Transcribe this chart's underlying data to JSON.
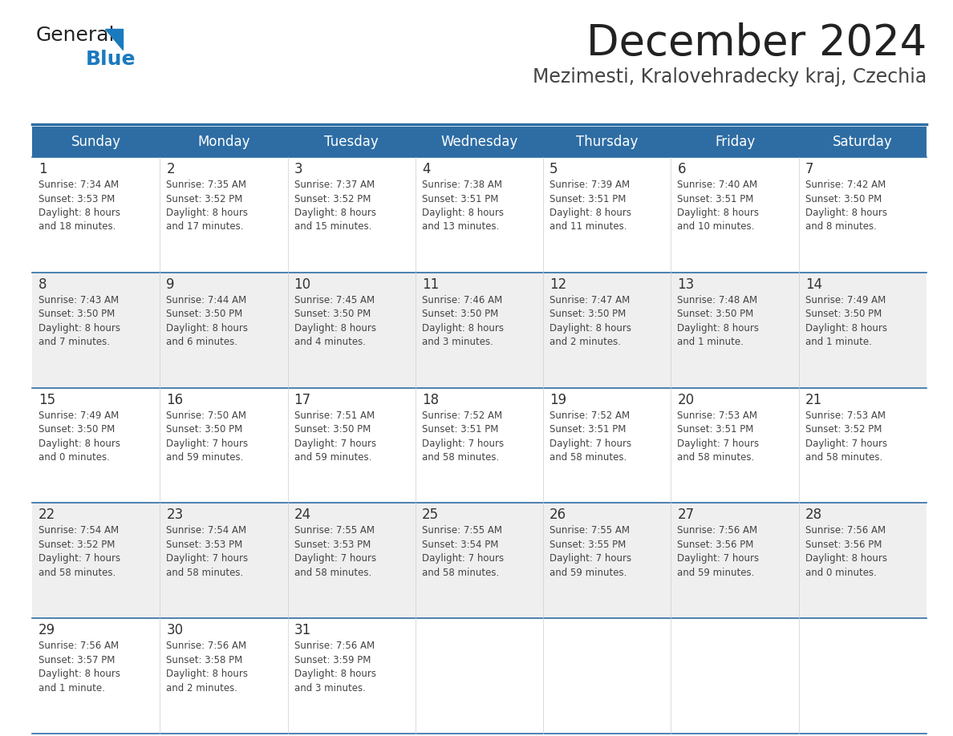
{
  "title": "December 2024",
  "subtitle": "Mezimesti, Kralovehradecky kraj, Czechia",
  "days_of_week": [
    "Sunday",
    "Monday",
    "Tuesday",
    "Wednesday",
    "Thursday",
    "Friday",
    "Saturday"
  ],
  "header_bg_color": "#2e6da4",
  "header_text_color": "#ffffff",
  "cell_bg_row0": "#ffffff",
  "cell_bg_row1": "#efefef",
  "cell_bg_row2": "#ffffff",
  "cell_bg_row3": "#efefef",
  "cell_bg_row4": "#ffffff",
  "cell_border_color": "#2e6da4",
  "day_number_color": "#333333",
  "cell_text_color": "#444444",
  "title_color": "#222222",
  "subtitle_color": "#444444",
  "logo_general_color": "#222222",
  "logo_blue_color": "#1a7abf",
  "calendar": [
    [
      {
        "day": 1,
        "sunrise": "7:34 AM",
        "sunset": "3:53 PM",
        "dl1": "Daylight: 8 hours",
        "dl2": "and 18 minutes."
      },
      {
        "day": 2,
        "sunrise": "7:35 AM",
        "sunset": "3:52 PM",
        "dl1": "Daylight: 8 hours",
        "dl2": "and 17 minutes."
      },
      {
        "day": 3,
        "sunrise": "7:37 AM",
        "sunset": "3:52 PM",
        "dl1": "Daylight: 8 hours",
        "dl2": "and 15 minutes."
      },
      {
        "day": 4,
        "sunrise": "7:38 AM",
        "sunset": "3:51 PM",
        "dl1": "Daylight: 8 hours",
        "dl2": "and 13 minutes."
      },
      {
        "day": 5,
        "sunrise": "7:39 AM",
        "sunset": "3:51 PM",
        "dl1": "Daylight: 8 hours",
        "dl2": "and 11 minutes."
      },
      {
        "day": 6,
        "sunrise": "7:40 AM",
        "sunset": "3:51 PM",
        "dl1": "Daylight: 8 hours",
        "dl2": "and 10 minutes."
      },
      {
        "day": 7,
        "sunrise": "7:42 AM",
        "sunset": "3:50 PM",
        "dl1": "Daylight: 8 hours",
        "dl2": "and 8 minutes."
      }
    ],
    [
      {
        "day": 8,
        "sunrise": "7:43 AM",
        "sunset": "3:50 PM",
        "dl1": "Daylight: 8 hours",
        "dl2": "and 7 minutes."
      },
      {
        "day": 9,
        "sunrise": "7:44 AM",
        "sunset": "3:50 PM",
        "dl1": "Daylight: 8 hours",
        "dl2": "and 6 minutes."
      },
      {
        "day": 10,
        "sunrise": "7:45 AM",
        "sunset": "3:50 PM",
        "dl1": "Daylight: 8 hours",
        "dl2": "and 4 minutes."
      },
      {
        "day": 11,
        "sunrise": "7:46 AM",
        "sunset": "3:50 PM",
        "dl1": "Daylight: 8 hours",
        "dl2": "and 3 minutes."
      },
      {
        "day": 12,
        "sunrise": "7:47 AM",
        "sunset": "3:50 PM",
        "dl1": "Daylight: 8 hours",
        "dl2": "and 2 minutes."
      },
      {
        "day": 13,
        "sunrise": "7:48 AM",
        "sunset": "3:50 PM",
        "dl1": "Daylight: 8 hours",
        "dl2": "and 1 minute."
      },
      {
        "day": 14,
        "sunrise": "7:49 AM",
        "sunset": "3:50 PM",
        "dl1": "Daylight: 8 hours",
        "dl2": "and 1 minute."
      }
    ],
    [
      {
        "day": 15,
        "sunrise": "7:49 AM",
        "sunset": "3:50 PM",
        "dl1": "Daylight: 8 hours",
        "dl2": "and 0 minutes."
      },
      {
        "day": 16,
        "sunrise": "7:50 AM",
        "sunset": "3:50 PM",
        "dl1": "Daylight: 7 hours",
        "dl2": "and 59 minutes."
      },
      {
        "day": 17,
        "sunrise": "7:51 AM",
        "sunset": "3:50 PM",
        "dl1": "Daylight: 7 hours",
        "dl2": "and 59 minutes."
      },
      {
        "day": 18,
        "sunrise": "7:52 AM",
        "sunset": "3:51 PM",
        "dl1": "Daylight: 7 hours",
        "dl2": "and 58 minutes."
      },
      {
        "day": 19,
        "sunrise": "7:52 AM",
        "sunset": "3:51 PM",
        "dl1": "Daylight: 7 hours",
        "dl2": "and 58 minutes."
      },
      {
        "day": 20,
        "sunrise": "7:53 AM",
        "sunset": "3:51 PM",
        "dl1": "Daylight: 7 hours",
        "dl2": "and 58 minutes."
      },
      {
        "day": 21,
        "sunrise": "7:53 AM",
        "sunset": "3:52 PM",
        "dl1": "Daylight: 7 hours",
        "dl2": "and 58 minutes."
      }
    ],
    [
      {
        "day": 22,
        "sunrise": "7:54 AM",
        "sunset": "3:52 PM",
        "dl1": "Daylight: 7 hours",
        "dl2": "and 58 minutes."
      },
      {
        "day": 23,
        "sunrise": "7:54 AM",
        "sunset": "3:53 PM",
        "dl1": "Daylight: 7 hours",
        "dl2": "and 58 minutes."
      },
      {
        "day": 24,
        "sunrise": "7:55 AM",
        "sunset": "3:53 PM",
        "dl1": "Daylight: 7 hours",
        "dl2": "and 58 minutes."
      },
      {
        "day": 25,
        "sunrise": "7:55 AM",
        "sunset": "3:54 PM",
        "dl1": "Daylight: 7 hours",
        "dl2": "and 58 minutes."
      },
      {
        "day": 26,
        "sunrise": "7:55 AM",
        "sunset": "3:55 PM",
        "dl1": "Daylight: 7 hours",
        "dl2": "and 59 minutes."
      },
      {
        "day": 27,
        "sunrise": "7:56 AM",
        "sunset": "3:56 PM",
        "dl1": "Daylight: 7 hours",
        "dl2": "and 59 minutes."
      },
      {
        "day": 28,
        "sunrise": "7:56 AM",
        "sunset": "3:56 PM",
        "dl1": "Daylight: 8 hours",
        "dl2": "and 0 minutes."
      }
    ],
    [
      {
        "day": 29,
        "sunrise": "7:56 AM",
        "sunset": "3:57 PM",
        "dl1": "Daylight: 8 hours",
        "dl2": "and 1 minute."
      },
      {
        "day": 30,
        "sunrise": "7:56 AM",
        "sunset": "3:58 PM",
        "dl1": "Daylight: 8 hours",
        "dl2": "and 2 minutes."
      },
      {
        "day": 31,
        "sunrise": "7:56 AM",
        "sunset": "3:59 PM",
        "dl1": "Daylight: 8 hours",
        "dl2": "and 3 minutes."
      },
      null,
      null,
      null,
      null
    ]
  ]
}
